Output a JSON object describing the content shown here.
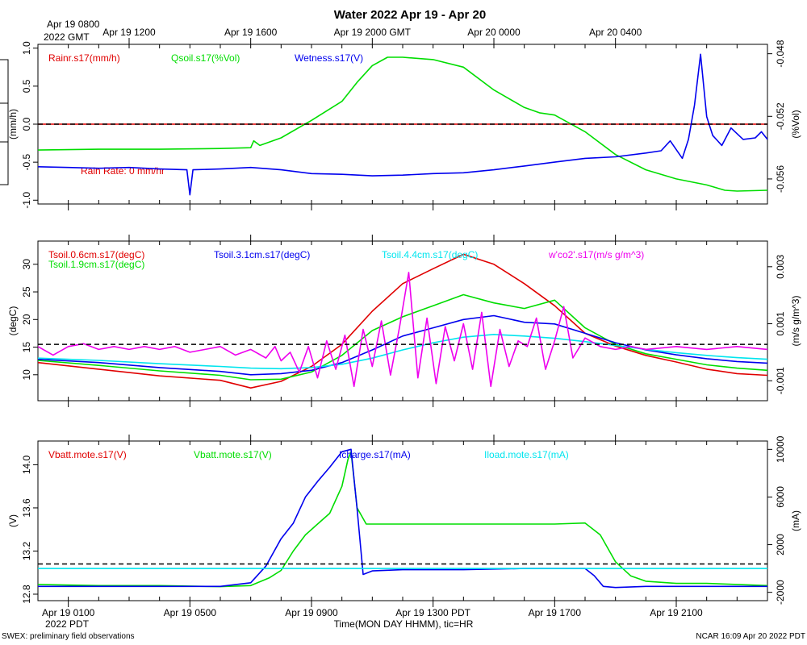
{
  "chart_data": {
    "type": "line",
    "title": "Water 2022 Apr 19 - Apr 20",
    "xlabel": "Time(MON DAY HHMM), tic=HR",
    "footer_left": "SWEX: preliminary field observations",
    "footer_right": "NCAR 16:09 Apr 20 2022 PDT",
    "x_range_hours": [
      0,
      24
    ],
    "top_axis": {
      "corner_label": "Apr 19 0800",
      "corner_label2": "2022 GMT",
      "ticks": [
        {
          "h": 3,
          "label": "Apr 19 1200"
        },
        {
          "h": 7,
          "label": "Apr 19 1600"
        },
        {
          "h": 11,
          "label": "Apr 19 2000 GMT"
        },
        {
          "h": 15,
          "label": "Apr 20 0000"
        },
        {
          "h": 19,
          "label": "Apr 20 0400"
        }
      ]
    },
    "bottom_axis": {
      "corner_label": "2022 PDT",
      "ticks": [
        {
          "h": 1,
          "label": "Apr 19 0100"
        },
        {
          "h": 5,
          "label": "Apr 19 0500"
        },
        {
          "h": 9,
          "label": "Apr 19 0900"
        },
        {
          "h": 13,
          "label": "Apr 19 1300 PDT"
        },
        {
          "h": 17,
          "label": "Apr 19 1700"
        },
        {
          "h": 21,
          "label": "Apr 19 2100"
        }
      ]
    },
    "panels": [
      {
        "id": "water",
        "ylabel_left": "(mm/h)",
        "ylabel_right": "(%Vol)",
        "ylim_left": [
          -1.05,
          1.05
        ],
        "yticks_left": [
          "1.0",
          "0.5",
          "0.0",
          "-0.5",
          "-1.0"
        ],
        "yticks_left_vals": [
          1.0,
          0.5,
          0.0,
          -0.5,
          -1.0
        ],
        "ylim_right": [
          -0.0576,
          -0.0474
        ],
        "yticks_right": [
          "-0.048",
          "-0.052",
          "-0.056"
        ],
        "yticks_right_vals": [
          -0.048,
          -0.052,
          -0.056
        ],
        "ref_line": 0.0,
        "annotation": "Rain Rate: 0 mm/hr",
        "legend": [
          {
            "label": "Rainr.s17(mm/h)",
            "color": "#e00000"
          },
          {
            "label": "Qsoil.s17(%Vol)",
            "color": "#00dd00"
          },
          {
            "label": "Wetness.s17(V)",
            "color": "#0000ee"
          }
        ],
        "series": [
          {
            "name": "Rainr.s17",
            "color": "#e00000",
            "axis": "left",
            "x": [
              0,
              24
            ],
            "y": [
              0.0,
              0.0
            ]
          },
          {
            "name": "Qsoil.s17",
            "color": "#00dd00",
            "axis": "left",
            "x": [
              0,
              2,
              4,
              6,
              7,
              7.1,
              7.3,
              8,
              9,
              10,
              10.5,
              11,
              11.5,
              12,
              13,
              14,
              15,
              16,
              16.5,
              17,
              18,
              19,
              20,
              21,
              22,
              22.6,
              23,
              24
            ],
            "y": [
              -0.34,
              -0.33,
              -0.33,
              -0.32,
              -0.31,
              -0.22,
              -0.28,
              -0.18,
              0.05,
              0.3,
              0.55,
              0.77,
              0.88,
              0.88,
              0.85,
              0.75,
              0.45,
              0.22,
              0.15,
              0.12,
              -0.1,
              -0.4,
              -0.6,
              -0.72,
              -0.8,
              -0.87,
              -0.88,
              -0.87
            ]
          },
          {
            "name": "Wetness.s17",
            "color": "#0000ee",
            "axis": "left",
            "x": [
              0,
              1,
              2,
              3,
              4,
              4.9,
              5.0,
              5.1,
              6,
              7,
              8,
              9,
              10,
              11,
              12,
              13,
              14,
              15,
              16,
              17,
              18,
              19,
              20,
              20.5,
              20.8,
              21.2,
              21.4,
              21.6,
              21.8,
              22.0,
              22.2,
              22.5,
              22.8,
              23.2,
              23.6,
              23.8,
              24
            ],
            "y": [
              -0.56,
              -0.57,
              -0.58,
              -0.57,
              -0.59,
              -0.6,
              -0.93,
              -0.6,
              -0.59,
              -0.57,
              -0.6,
              -0.65,
              -0.66,
              -0.68,
              -0.67,
              -0.65,
              -0.64,
              -0.6,
              -0.55,
              -0.5,
              -0.45,
              -0.43,
              -0.38,
              -0.35,
              -0.22,
              -0.45,
              -0.2,
              0.25,
              0.92,
              0.1,
              -0.15,
              -0.28,
              -0.05,
              -0.2,
              -0.18,
              -0.1,
              -0.2
            ]
          }
        ]
      },
      {
        "id": "soil",
        "ylabel_left": "(degC)",
        "ylabel_right": "(m/s g/m^3)",
        "ylim_left": [
          5.3,
          34.2
        ],
        "yticks_left": [
          "30",
          "25",
          "20",
          "15",
          "10"
        ],
        "yticks_left_vals": [
          30,
          25,
          20,
          15,
          10
        ],
        "ylim_right": [
          -0.0017,
          0.0039
        ],
        "yticks_right": [
          "0.003",
          "0.001",
          "-0.001"
        ],
        "yticks_right_vals": [
          0.003,
          0.001,
          -0.001
        ],
        "ref_line": 15.5,
        "legend": [
          {
            "label": "Tsoil.0.6cm.s17(degC)",
            "color": "#e00000"
          },
          {
            "label": "Tsoil.1.9cm.s17(degC)",
            "color": "#00dd00"
          },
          {
            "label": "Tsoil.3.1cm.s17(degC)",
            "color": "#0000ee"
          },
          {
            "label": "Tsoil.4.4cm.s17(degC)",
            "color": "#00e5ee"
          },
          {
            "label": "w'co2'.s17(m/s g/m^3)",
            "color": "#ee00ee"
          }
        ],
        "series": [
          {
            "name": "Tsoil.0.6cm",
            "color": "#e00000",
            "axis": "left",
            "x": [
              0,
              2,
              4,
              6,
              7,
              8,
              9,
              10,
              11,
              12,
              13,
              14,
              15,
              16,
              17,
              18,
              19,
              20,
              21,
              22,
              23,
              24
            ],
            "y": [
              12.2,
              11.0,
              9.8,
              9.0,
              7.6,
              8.8,
              11.5,
              15.5,
              21.5,
              26.5,
              29.2,
              31.8,
              30.0,
              26.5,
              22.5,
              17.5,
              15.2,
              13.5,
              12.3,
              11.0,
              10.2,
              9.9
            ]
          },
          {
            "name": "Tsoil.1.9cm",
            "color": "#00dd00",
            "axis": "left",
            "x": [
              0,
              2,
              4,
              6,
              7,
              8,
              9,
              10,
              11,
              12,
              13,
              14,
              15,
              16,
              17,
              18,
              19,
              20,
              21,
              22,
              23,
              24
            ],
            "y": [
              12.6,
              11.7,
              10.7,
              9.9,
              9.1,
              9.2,
              10.5,
              13.5,
              18.0,
              20.5,
              22.5,
              24.5,
              23.0,
              22.0,
              23.5,
              18.5,
              15.5,
              13.8,
              12.8,
              11.8,
              11.2,
              10.8
            ]
          },
          {
            "name": "Tsoil.3.1cm",
            "color": "#0000ee",
            "axis": "left",
            "x": [
              0,
              2,
              4,
              6,
              7,
              8,
              9,
              10,
              11,
              12,
              13,
              14,
              15,
              16,
              17,
              18,
              19,
              20,
              21,
              22,
              23,
              24
            ],
            "y": [
              12.8,
              12.2,
              11.3,
              10.6,
              10.0,
              10.2,
              10.8,
              12.2,
              14.5,
              17.0,
              18.5,
              20.0,
              20.7,
              19.5,
              19.2,
              17.5,
              15.8,
              14.5,
              13.6,
              12.9,
              12.4,
              12.1
            ]
          },
          {
            "name": "Tsoil.4.4cm",
            "color": "#00e5ee",
            "axis": "left",
            "x": [
              0,
              2,
              4,
              6,
              7,
              8,
              9,
              10,
              11,
              12,
              13,
              14,
              15,
              16,
              17,
              18,
              19,
              20,
              21,
              22,
              23,
              24
            ],
            "y": [
              13.0,
              12.6,
              12.0,
              11.5,
              11.2,
              11.1,
              11.3,
              11.9,
              13.0,
              14.5,
              15.8,
              16.8,
              17.3,
              17.0,
              16.6,
              16.0,
              15.3,
              14.6,
              14.0,
              13.5,
              13.1,
              12.8
            ]
          },
          {
            "name": "w'co2'",
            "color": "#ee00ee",
            "axis": "right",
            "x": [
              0,
              0.5,
              1,
              1.5,
              2,
              2.5,
              3,
              3.5,
              4,
              4.5,
              5,
              5.5,
              6,
              6.5,
              7,
              7.5,
              7.8,
              8,
              8.3,
              8.6,
              8.9,
              9.2,
              9.5,
              9.8,
              10.1,
              10.4,
              10.7,
              11.0,
              11.3,
              11.6,
              11.9,
              12.2,
              12.5,
              12.8,
              13.1,
              13.4,
              13.7,
              14.0,
              14.3,
              14.6,
              14.9,
              15.2,
              15.5,
              15.8,
              16.1,
              16.4,
              16.7,
              17.0,
              17.3,
              17.6,
              18.0,
              18.5,
              19,
              19.5,
              20,
              21,
              22,
              23,
              24
            ],
            "y": [
              0.0002,
              -0.0001,
              0.0002,
              0.0003,
              0.0001,
              0.0002,
              0.0001,
              0.0002,
              0.0001,
              0.0002,
              0.0,
              0.0001,
              0.0002,
              -0.0001,
              0.0001,
              -0.0002,
              0.0002,
              -0.0003,
              0.0,
              -0.0007,
              0.0002,
              -0.0009,
              0.0004,
              -0.0006,
              0.0006,
              -0.0012,
              0.0008,
              -0.0005,
              0.0011,
              -0.0008,
              0.0009,
              0.0028,
              -0.0009,
              0.0012,
              -0.0011,
              0.0009,
              -0.0003,
              0.001,
              -0.0006,
              0.0014,
              -0.0012,
              0.0008,
              -0.0005,
              0.0004,
              0.0002,
              0.0012,
              -0.0006,
              0.0004,
              0.0016,
              -0.0002,
              0.0005,
              0.0002,
              0.0001,
              0.0002,
              0.0001,
              0.0002,
              0.0001,
              0.0002,
              0.0001
            ]
          }
        ]
      },
      {
        "id": "power",
        "ylabel_left": "(V)",
        "ylabel_right": "(mA)",
        "ylim_left": [
          12.74,
          14.22
        ],
        "yticks_left": [
          "14.0",
          "13.6",
          "13.2",
          "12.8"
        ],
        "yticks_left_vals": [
          14.0,
          13.6,
          13.2,
          12.8
        ],
        "ylim_right": [
          -2700,
          10700
        ],
        "yticks_right": [
          "10000",
          "6000",
          "2000",
          "-2000"
        ],
        "yticks_right_vals": [
          10000,
          6000,
          2000,
          -2000
        ],
        "ref_line": 13.08,
        "legend": [
          {
            "label": "Vbatt.mote.s17(V)",
            "color": "#e00000"
          },
          {
            "label": "Vbatt.mote.s17(V)",
            "color": "#00dd00"
          },
          {
            "label": "Icharge.s17(mA)",
            "color": "#0000ee"
          },
          {
            "label": "Iload.mote.s17(mA)",
            "color": "#00e5ee"
          }
        ],
        "series": [
          {
            "name": "Vbatt.mote green",
            "color": "#00dd00",
            "axis": "left",
            "x": [
              0,
              2,
              4,
              6,
              7,
              7.6,
              8,
              8.4,
              8.8,
              9.2,
              9.6,
              10,
              10.2,
              10.3,
              10.5,
              10.8,
              11,
              12,
              14,
              15,
              16,
              17,
              18,
              18.5,
              19,
              19.5,
              20,
              21,
              22,
              23,
              24
            ],
            "y": [
              12.89,
              12.88,
              12.88,
              12.87,
              12.88,
              12.95,
              13.02,
              13.2,
              13.35,
              13.45,
              13.55,
              13.8,
              14.05,
              14.12,
              13.6,
              13.45,
              13.45,
              13.45,
              13.45,
              13.45,
              13.45,
              13.45,
              13.46,
              13.35,
              13.1,
              12.97,
              12.92,
              12.9,
              12.9,
              12.89,
              12.88
            ]
          },
          {
            "name": "Icharge.s17",
            "color": "#0000ee",
            "axis": "right",
            "x": [
              0,
              2,
              4,
              6,
              7,
              7.5,
              8,
              8.4,
              8.8,
              9.2,
              9.6,
              10,
              10.3,
              10.5,
              10.7,
              11,
              12,
              14,
              16,
              17,
              18,
              18.3,
              18.6,
              19,
              20,
              22,
              24
            ],
            "y": [
              -1500,
              -1500,
              -1500,
              -1500,
              -1200,
              200,
              2500,
              3800,
              6000,
              7300,
              8500,
              9800,
              10000,
              5000,
              -500,
              -200,
              -100,
              -100,
              0,
              0,
              0,
              -600,
              -1500,
              -1600,
              -1500,
              -1500,
              -1500
            ]
          },
          {
            "name": "Iload.mote.s17",
            "color": "#00e5ee",
            "axis": "right",
            "x": [
              0,
              24
            ],
            "y": [
              0,
              0
            ]
          }
        ]
      }
    ]
  }
}
